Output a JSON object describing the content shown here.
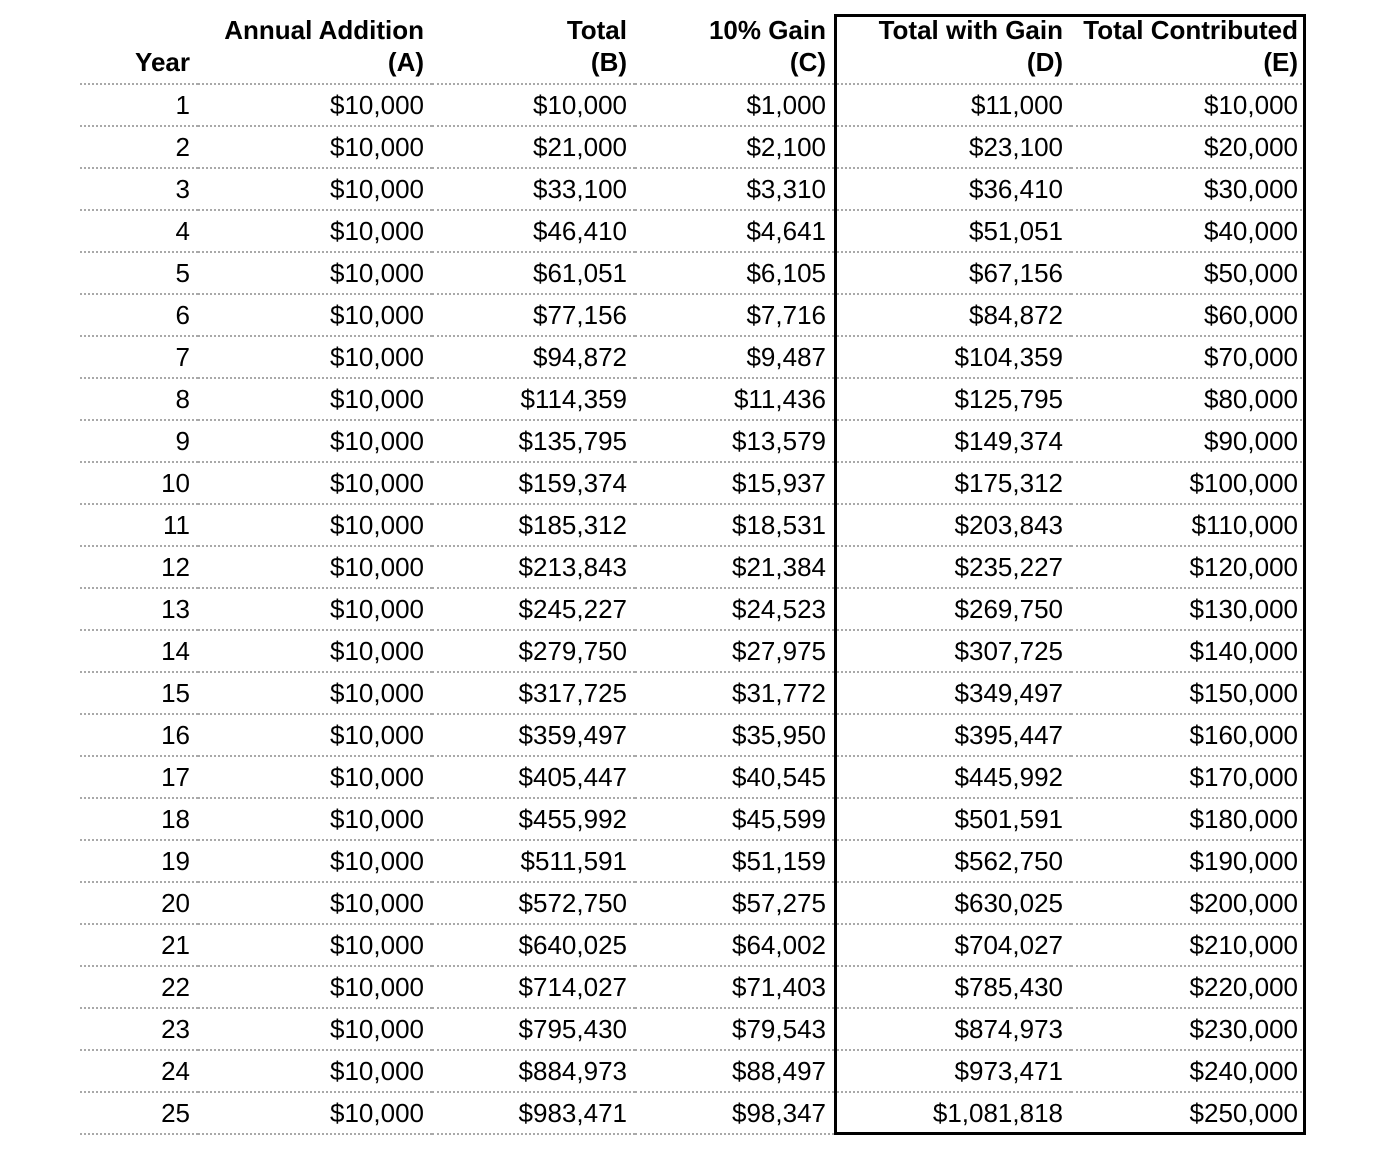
{
  "table": {
    "columns": [
      {
        "id": "year",
        "line1": "",
        "line2": "Year"
      },
      {
        "id": "annual-addition",
        "line1": "Annual Addition",
        "line2": "(A)"
      },
      {
        "id": "total",
        "line1": "Total",
        "line2": "(B)"
      },
      {
        "id": "ten-percent-gain",
        "line1": "10% Gain",
        "line2": "(C)"
      },
      {
        "id": "total-with-gain",
        "line1": "Total with Gain",
        "line2": "(D)"
      },
      {
        "id": "total-contributed",
        "line1": "Total Contributed",
        "line2": "(E)"
      }
    ],
    "rows": [
      [
        "1",
        "$10,000",
        "$10,000",
        "$1,000",
        "$11,000",
        "$10,000"
      ],
      [
        "2",
        "$10,000",
        "$21,000",
        "$2,100",
        "$23,100",
        "$20,000"
      ],
      [
        "3",
        "$10,000",
        "$33,100",
        "$3,310",
        "$36,410",
        "$30,000"
      ],
      [
        "4",
        "$10,000",
        "$46,410",
        "$4,641",
        "$51,051",
        "$40,000"
      ],
      [
        "5",
        "$10,000",
        "$61,051",
        "$6,105",
        "$67,156",
        "$50,000"
      ],
      [
        "6",
        "$10,000",
        "$77,156",
        "$7,716",
        "$84,872",
        "$60,000"
      ],
      [
        "7",
        "$10,000",
        "$94,872",
        "$9,487",
        "$104,359",
        "$70,000"
      ],
      [
        "8",
        "$10,000",
        "$114,359",
        "$11,436",
        "$125,795",
        "$80,000"
      ],
      [
        "9",
        "$10,000",
        "$135,795",
        "$13,579",
        "$149,374",
        "$90,000"
      ],
      [
        "10",
        "$10,000",
        "$159,374",
        "$15,937",
        "$175,312",
        "$100,000"
      ],
      [
        "11",
        "$10,000",
        "$185,312",
        "$18,531",
        "$203,843",
        "$110,000"
      ],
      [
        "12",
        "$10,000",
        "$213,843",
        "$21,384",
        "$235,227",
        "$120,000"
      ],
      [
        "13",
        "$10,000",
        "$245,227",
        "$24,523",
        "$269,750",
        "$130,000"
      ],
      [
        "14",
        "$10,000",
        "$279,750",
        "$27,975",
        "$307,725",
        "$140,000"
      ],
      [
        "15",
        "$10,000",
        "$317,725",
        "$31,772",
        "$349,497",
        "$150,000"
      ],
      [
        "16",
        "$10,000",
        "$359,497",
        "$35,950",
        "$395,447",
        "$160,000"
      ],
      [
        "17",
        "$10,000",
        "$405,447",
        "$40,545",
        "$445,992",
        "$170,000"
      ],
      [
        "18",
        "$10,000",
        "$455,992",
        "$45,599",
        "$501,591",
        "$180,000"
      ],
      [
        "19",
        "$10,000",
        "$511,591",
        "$51,159",
        "$562,750",
        "$190,000"
      ],
      [
        "20",
        "$10,000",
        "$572,750",
        "$57,275",
        "$630,025",
        "$200,000"
      ],
      [
        "21",
        "$10,000",
        "$640,025",
        "$64,002",
        "$704,027",
        "$210,000"
      ],
      [
        "22",
        "$10,000",
        "$714,027",
        "$71,403",
        "$785,430",
        "$220,000"
      ],
      [
        "23",
        "$10,000",
        "$795,430",
        "$79,543",
        "$874,973",
        "$230,000"
      ],
      [
        "24",
        "$10,000",
        "$884,973",
        "$88,497",
        "$973,471",
        "$240,000"
      ],
      [
        "25",
        "$10,000",
        "$983,471",
        "$98,347",
        "$1,081,818",
        "$250,000"
      ]
    ],
    "highlighted_columns": [
      "Total with Gain (D)",
      "Total Contributed (E)"
    ]
  },
  "colors": {
    "text": "#000000",
    "grid_dots": "#a9a9a9",
    "highlight_box_border": "#000000",
    "background": "#ffffff"
  }
}
